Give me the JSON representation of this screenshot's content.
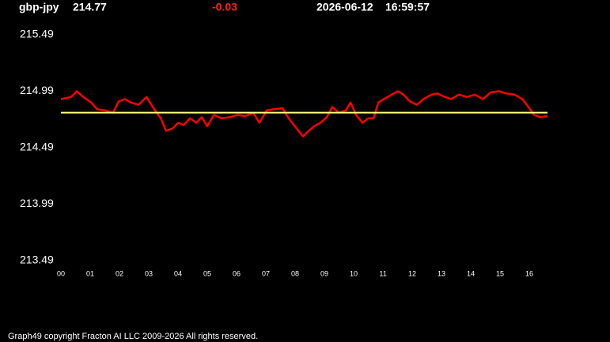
{
  "chart_data": {
    "type": "line",
    "title": "gbp-jpy",
    "last_price": 214.77,
    "change": -0.03,
    "date": "2026-06-12",
    "time": "16:59:57",
    "footer": "Graph49 copyright Fracton AI LLC 2009-2026 All rights reserved.",
    "color": "#ff0000",
    "x": [
      0,
      0.35,
      0.54,
      0.76,
      1.03,
      1.24,
      1.51,
      1.78,
      1.97,
      2.19,
      2.38,
      2.65,
      2.92,
      3.19,
      3.41,
      3.59,
      3.81,
      4.0,
      4.19,
      4.41,
      4.62,
      4.81,
      5.0,
      5.22,
      5.49,
      5.76,
      6.03,
      6.3,
      6.57,
      6.78,
      7.03,
      7.24,
      7.57,
      7.78,
      8.05,
      8.27,
      8.46,
      8.65,
      8.86,
      9.08,
      9.27,
      9.49,
      9.73,
      9.89,
      10.08,
      10.3,
      10.49,
      10.68,
      10.84,
      11.03,
      11.3,
      11.51,
      11.7,
      11.92,
      12.16,
      12.38,
      12.65,
      12.86,
      13.11,
      13.32,
      13.59,
      13.86,
      14.14,
      14.41,
      14.68,
      14.95,
      15.22,
      15.49,
      15.76,
      15.97,
      16.16,
      16.38,
      16.62
    ],
    "values": [
      214.92,
      214.94,
      214.99,
      214.94,
      214.89,
      214.83,
      214.82,
      214.8,
      214.9,
      214.92,
      214.89,
      214.87,
      214.94,
      214.83,
      214.75,
      214.64,
      214.66,
      214.71,
      214.69,
      214.75,
      214.71,
      214.76,
      214.68,
      214.78,
      214.75,
      214.76,
      214.78,
      214.77,
      214.8,
      214.71,
      214.82,
      214.83,
      214.84,
      214.75,
      214.66,
      214.59,
      214.64,
      214.68,
      214.71,
      214.76,
      214.85,
      214.8,
      214.82,
      214.89,
      214.78,
      214.71,
      214.75,
      214.75,
      214.89,
      214.92,
      214.96,
      214.99,
      214.96,
      214.9,
      214.87,
      214.92,
      214.96,
      214.97,
      214.94,
      214.92,
      214.96,
      214.94,
      214.96,
      214.92,
      214.98,
      214.99,
      214.97,
      214.96,
      214.92,
      214.85,
      214.78,
      214.76,
      214.77
    ],
    "reference_line": {
      "value": 214.8,
      "color": "#ffff80"
    },
    "xlim": [
      0,
      16.62
    ],
    "xticks": [
      {
        "value": 0,
        "label": "00"
      },
      {
        "value": 1,
        "label": "01"
      },
      {
        "value": 2,
        "label": "02"
      },
      {
        "value": 3,
        "label": "03"
      },
      {
        "value": 4,
        "label": "04"
      },
      {
        "value": 5,
        "label": "05"
      },
      {
        "value": 6,
        "label": "06"
      },
      {
        "value": 7,
        "label": "07"
      },
      {
        "value": 8,
        "label": "08"
      },
      {
        "value": 9,
        "label": "09"
      },
      10,
      11,
      12,
      13,
      14,
      15,
      16
    ],
    "ylim": [
      213.49,
      215.49
    ],
    "yticks": [
      213.49,
      213.99,
      214.49,
      214.99,
      215.49
    ],
    "change_color": "#ff2020"
  }
}
